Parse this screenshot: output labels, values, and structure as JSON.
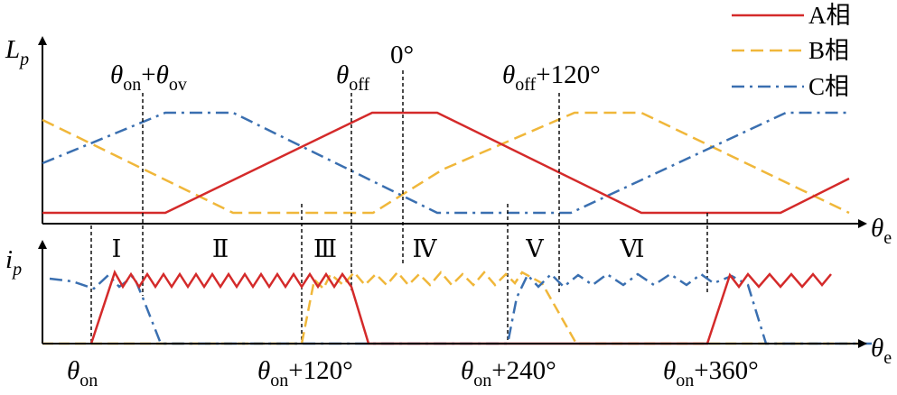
{
  "legend": [
    {
      "label": "A相",
      "color": "#d42a2a",
      "dash": "solid"
    },
    {
      "label": "B相",
      "color": "#f0b73a",
      "dash": "dashed"
    },
    {
      "label": "C相",
      "color": "#3a6fb0",
      "dash": "dashdot"
    }
  ],
  "axes": {
    "upper_y": {
      "symbol": "L",
      "sub": "p"
    },
    "upper_x": {
      "symbol": "θ",
      "sub": "e"
    },
    "lower_y": {
      "symbol": "i",
      "sub": "p"
    },
    "lower_x": {
      "symbol": "θ",
      "sub": "e"
    }
  },
  "upper_labels": {
    "on_ov": {
      "t1": "θ",
      "s1": "on",
      "plus": "+",
      "t2": "θ",
      "s2": "ov"
    },
    "off": {
      "t": "θ",
      "s": "off"
    },
    "zero": "0°",
    "off120": {
      "t": "θ",
      "s": "off",
      "rest": "+120°"
    }
  },
  "intervals": [
    "Ⅰ",
    "Ⅱ",
    "Ⅲ",
    "Ⅳ",
    "Ⅴ",
    "Ⅵ"
  ],
  "bottom_labels": [
    {
      "t": "θ",
      "s": "on",
      "rest": ""
    },
    {
      "t": "θ",
      "s": "on",
      "rest": "+120°"
    },
    {
      "t": "θ",
      "s": "on",
      "rest": "+240°"
    },
    {
      "t": "θ",
      "s": "on",
      "rest": "+360°"
    }
  ]
}
